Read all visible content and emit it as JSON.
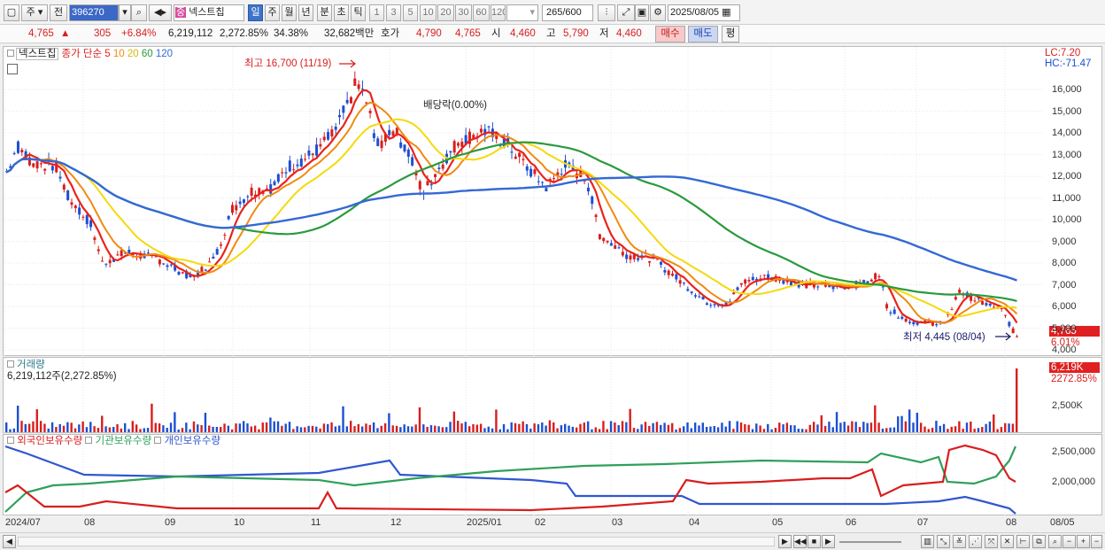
{
  "toolbar": {
    "market": "주",
    "prev": "전",
    "code": "396270",
    "stock_name": "넥스트칩",
    "stock_badge": "중",
    "periods": [
      "일",
      "주",
      "월",
      "년",
      "분",
      "초",
      "틱"
    ],
    "intervals": [
      "1",
      "3",
      "5",
      "10",
      "20",
      "30",
      "60",
      "120"
    ],
    "count": "265",
    "count_total": "/600",
    "date": "2025/08/05"
  },
  "quote": {
    "price": "4,765",
    "change": "305",
    "change_pct": "+6.84%",
    "volume": "6,219,112",
    "volume_ratio": "2,272.85%",
    "turnover": "34.38%",
    "amount": "32,682백만",
    "hoga_label": "호가",
    "ask": "4,790",
    "bid": "4,765",
    "open_label": "시",
    "open": "4,460",
    "high_label": "고",
    "high": "5,790",
    "low_label": "저",
    "low": "4,460",
    "buy_button": "매수",
    "sell_button": "매도",
    "eval_button": "평"
  },
  "price_pane": {
    "legend_name": "넥스트칩",
    "legend_prefix": "종가 단순",
    "ma": [
      {
        "period": "5",
        "color": "#e8231c"
      },
      {
        "period": "10",
        "color": "#f08a12"
      },
      {
        "period": "20",
        "color": "#f5d90e"
      },
      {
        "period": "60",
        "color": "#2a9a3d"
      },
      {
        "period": "120",
        "color": "#3468d6"
      }
    ],
    "lc": "LC:7.20",
    "hc": "HC:-71.47",
    "max_label": "최고 16,700 (11/19)",
    "min_label": "최저 4,445 (08/04)",
    "dividend_label": "배당락(0.00%)",
    "current_price_tag": "4,765",
    "current_pct_tag": "6.01%",
    "y_ticks": [
      "16,000",
      "15,000",
      "14,000",
      "13,000",
      "12,000",
      "11,000",
      "10,000",
      "9,000",
      "8,000",
      "7,000",
      "6,000",
      "5,000",
      "4,000"
    ]
  },
  "volume_pane": {
    "title": "거래량",
    "value": "6,219,112주(2,272.85%)",
    "tag_value": "6,219K",
    "tag_pct": "2272.85%",
    "y_tick": "2,500K"
  },
  "holding_pane": {
    "series": [
      {
        "name": "외국인보유수량",
        "color": "#d81e1e"
      },
      {
        "name": "기관보유수량",
        "color": "#2ea05a"
      },
      {
        "name": "개인보유수량",
        "color": "#3057d0"
      }
    ],
    "y_ticks": [
      "2,500,000",
      "2,000,000"
    ]
  },
  "x_axis": [
    "2024/07",
    "08",
    "09",
    "10",
    "11",
    "12",
    "2025/01",
    "02",
    "03",
    "04",
    "05",
    "06",
    "07",
    "08",
    "08/05"
  ],
  "colors": {
    "up": "#d81e1e",
    "down": "#1d4fd1",
    "ma5": "#e8231c",
    "ma10": "#f08a12",
    "ma20": "#f5d90e",
    "ma60": "#2a9a3d",
    "ma120": "#3468d6"
  }
}
